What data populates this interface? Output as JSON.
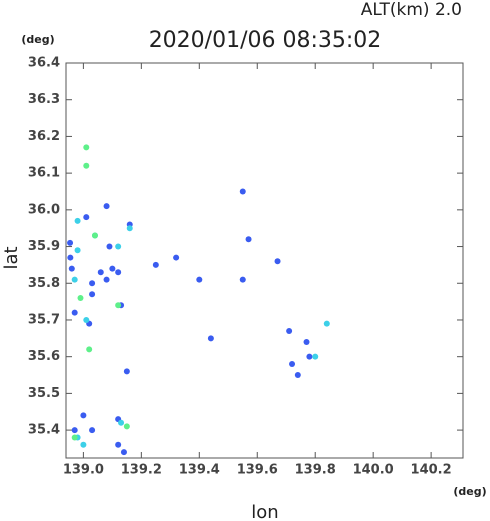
{
  "chart_data": {
    "type": "scatter",
    "title": "2020/01/06 08:35:02",
    "annotation": "ALT(km) 2.0",
    "y_unit": "(deg)",
    "x_unit": "(deg)",
    "xlabel": "lon",
    "ylabel": "lat",
    "xlim": [
      138.94,
      140.31
    ],
    "ylim": [
      35.324,
      36.4
    ],
    "xticks": [
      {
        "value": 139.0,
        "label": "139.0"
      },
      139.2,
      139.4,
      139.6,
      139.8,
      {
        "value": 140.0,
        "label": "140.0"
      },
      140.2
    ],
    "yticks": [
      36.4,
      36.3,
      36.2,
      36.1,
      {
        "value": 36.0,
        "label": "36.0"
      },
      35.9,
      35.8,
      35.7,
      35.6,
      35.5,
      35.4
    ],
    "grid": false,
    "series": [
      {
        "color": "#3a5cf0",
        "x": [
          139.01,
          138.954,
          138.955,
          138.96,
          139.03,
          139.03,
          138.97,
          139.02,
          139.06,
          139.08,
          139.1,
          139.12,
          139.13,
          139.15,
          139.08,
          139.25,
          139.32,
          139.4,
          139.44,
          139.55,
          139.57,
          139.55,
          139.67,
          139.71,
          139.72,
          139.74,
          139.77,
          139.78,
          139.12,
          139.12,
          139.0,
          138.97,
          139.03,
          139.14,
          139.09,
          139.16
        ],
        "values": [
          35.98,
          35.91,
          35.87,
          35.84,
          35.8,
          35.77,
          35.72,
          35.69,
          35.83,
          35.81,
          35.84,
          35.83,
          35.74,
          35.56,
          36.01,
          35.85,
          35.87,
          35.81,
          35.65,
          36.05,
          35.92,
          35.81,
          35.86,
          35.67,
          35.58,
          35.55,
          35.64,
          35.6,
          35.43,
          35.36,
          35.44,
          35.4,
          35.4,
          35.34,
          35.9,
          35.96
        ]
      },
      {
        "color": "#3cd0e8",
        "x": [
          138.98,
          138.98,
          139.04,
          139.12,
          139.16,
          138.97,
          139.01,
          139.13,
          138.98,
          139.0,
          139.84,
          139.8
        ],
        "values": [
          35.97,
          35.89,
          35.93,
          35.9,
          35.95,
          35.81,
          35.7,
          35.42,
          35.38,
          35.36,
          35.69,
          35.6
        ]
      },
      {
        "color": "#5ef08a",
        "x": [
          139.01,
          139.01,
          138.99,
          139.02,
          139.12,
          138.97,
          139.15,
          139.04
        ],
        "values": [
          36.17,
          36.12,
          35.76,
          35.62,
          35.74,
          35.38,
          35.41,
          35.93
        ]
      }
    ]
  }
}
